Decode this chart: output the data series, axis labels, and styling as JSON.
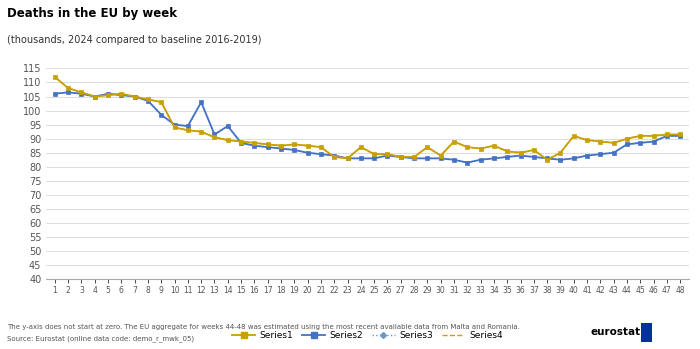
{
  "title": "Deaths in the EU by week",
  "subtitle": "(thousands, 2024 compared to baseline 2016-2019)",
  "ylim": [
    40,
    117
  ],
  "yticks": [
    40,
    45,
    50,
    55,
    60,
    65,
    70,
    75,
    80,
    85,
    90,
    95,
    100,
    105,
    110,
    115
  ],
  "weeks": [
    1,
    2,
    3,
    4,
    5,
    6,
    7,
    8,
    9,
    10,
    11,
    12,
    13,
    14,
    15,
    16,
    17,
    18,
    19,
    20,
    21,
    22,
    23,
    24,
    25,
    26,
    27,
    28,
    29,
    30,
    31,
    32,
    33,
    34,
    35,
    36,
    37,
    38,
    39,
    40,
    41,
    42,
    43,
    44,
    45,
    46,
    47,
    48
  ],
  "series1_gold": [
    112,
    108,
    106,
    105,
    105,
    106,
    105,
    104,
    103,
    94,
    93,
    92,
    90,
    89,
    89,
    88,
    88,
    87,
    88,
    87,
    87,
    83,
    83,
    87,
    84,
    84,
    83,
    83,
    87,
    84,
    89,
    87,
    86,
    87,
    85,
    85,
    86,
    82,
    85,
    91,
    89,
    89,
    88,
    90,
    91,
    91,
    91,
    91
  ],
  "series2_blue": [
    106,
    106.5,
    106,
    105,
    106,
    105,
    105,
    103,
    98,
    95,
    94,
    103,
    91,
    95,
    89,
    88,
    87,
    87,
    86,
    85,
    84,
    84,
    83,
    83,
    83,
    84,
    84,
    83,
    83,
    83,
    83,
    82,
    83,
    83,
    83,
    84,
    83,
    83,
    83,
    83,
    84,
    84,
    85,
    88,
    88,
    89,
    91,
    91
  ],
  "series3_blue_dot": [
    106,
    106.5,
    106,
    105,
    106,
    105,
    105,
    103,
    98,
    95,
    94,
    103,
    91,
    95,
    89,
    88,
    87,
    87,
    86,
    85,
    84,
    84,
    83,
    83,
    83,
    84,
    84,
    83,
    83,
    83,
    83,
    82,
    83,
    83,
    83,
    84,
    83,
    83,
    83,
    83,
    84,
    84,
    85,
    88,
    88,
    89,
    91,
    91
  ],
  "series4_gold_dash": [
    112,
    108,
    106,
    105,
    105,
    106,
    105,
    104,
    103,
    94,
    93,
    92,
    90,
    89,
    89,
    88,
    88,
    87,
    88,
    87,
    87,
    83,
    83,
    87,
    84,
    84,
    83,
    83,
    87,
    84,
    89,
    87,
    86,
    87,
    85,
    85,
    86,
    82,
    85,
    91,
    89,
    89,
    88,
    90,
    91,
    91,
    91,
    91
  ],
  "color_gold": "#C8A000",
  "color_blue": "#4472C4",
  "footnote_line1": "The y-axis does not start at zero. The EU aggregate for weeks 44-48 was estimated using the most recent available data from Malta and Romania.",
  "footnote_line2": "Source: Eurostat (online data code: demo_r_mwk_05)",
  "background_color": "#ffffff",
  "grid_color": "#d0d0d0"
}
